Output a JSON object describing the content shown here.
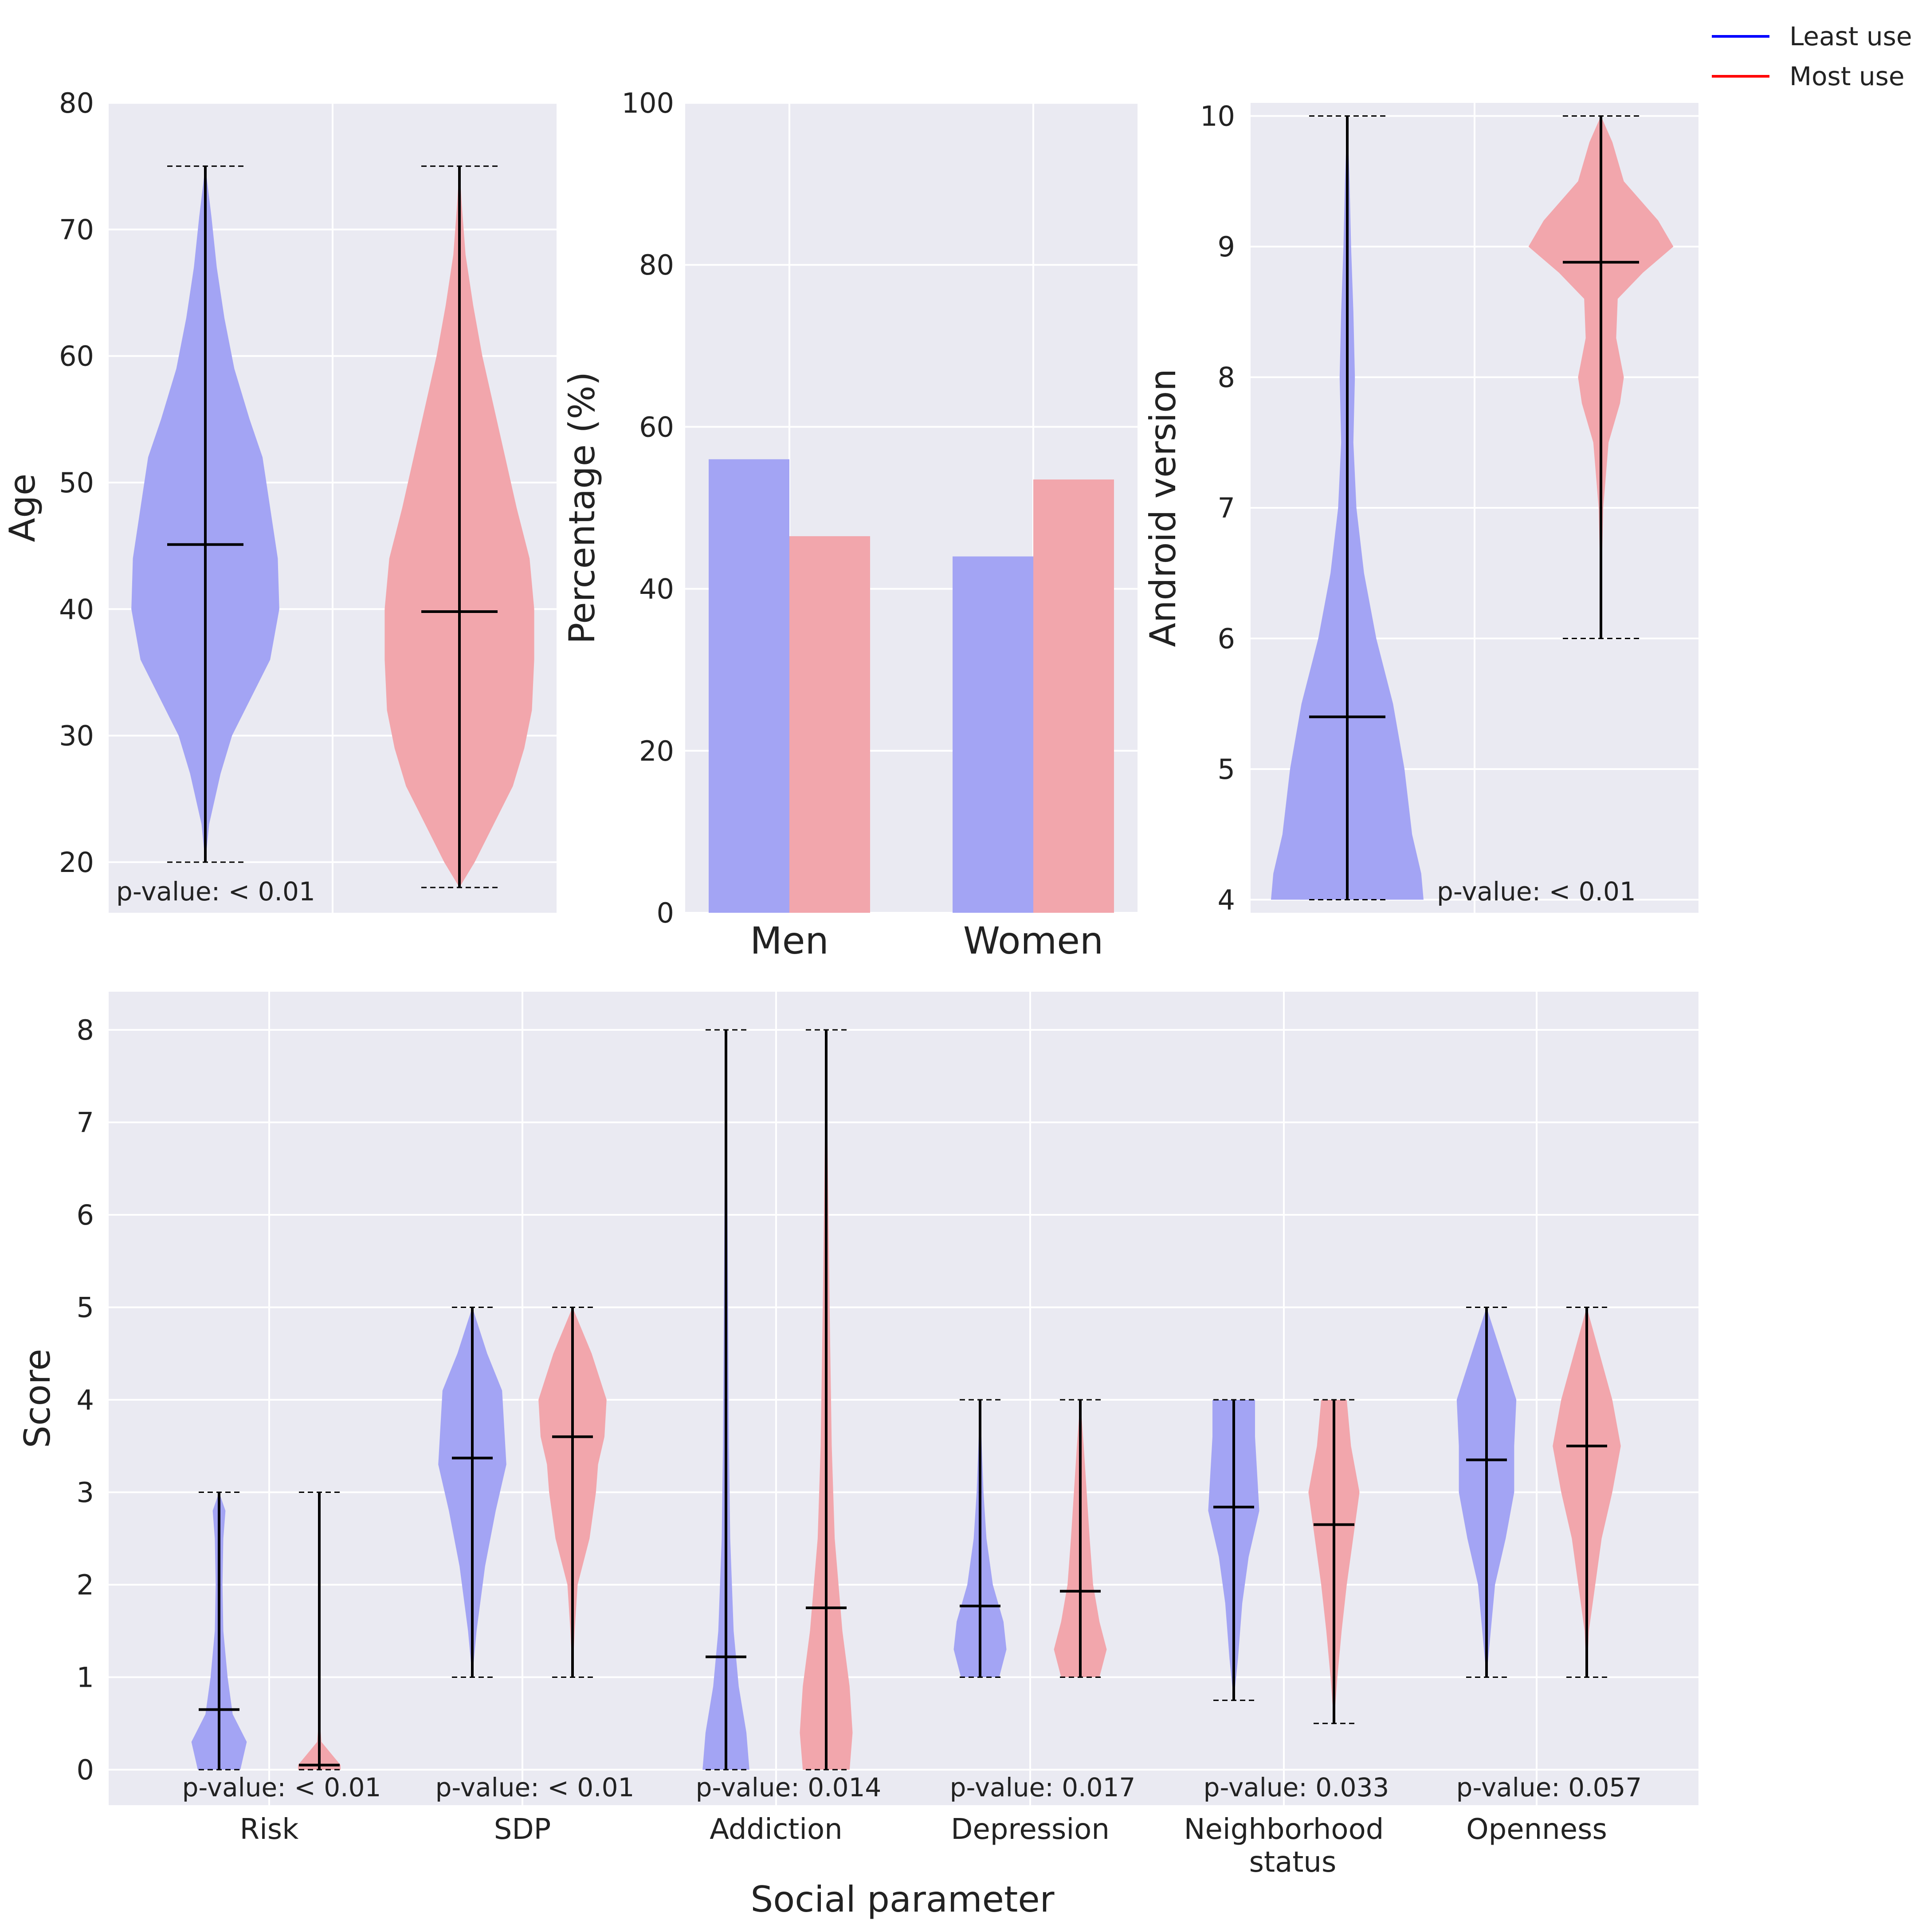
{
  "colors": {
    "least_use": "#0000ff",
    "most_use": "#ff0000",
    "least_fill": "#a3a4f4",
    "most_fill": "#f2a6ac",
    "panel_bg": "#eaeaf2",
    "grid": "#ffffff"
  },
  "legend": {
    "least_use": "Least use",
    "most_use": "Most use",
    "placement": "top-right"
  },
  "chart_data": [
    {
      "id": "age",
      "type": "violin",
      "ylabel": "Age",
      "ylim": [
        16,
        80
      ],
      "yticks": [
        "20",
        "30",
        "40",
        "50",
        "60",
        "70",
        "80"
      ],
      "series": [
        {
          "name": "Least use",
          "min": 20,
          "max": 75,
          "mean": 45.1,
          "density": [
            [
              20,
              0.0
            ],
            [
              23,
              0.05
            ],
            [
              27,
              0.2
            ],
            [
              30,
              0.35
            ],
            [
              33,
              0.6
            ],
            [
              36,
              0.85
            ],
            [
              40,
              0.97
            ],
            [
              44,
              0.95
            ],
            [
              48,
              0.85
            ],
            [
              52,
              0.75
            ],
            [
              55,
              0.58
            ],
            [
              59,
              0.38
            ],
            [
              63,
              0.25
            ],
            [
              67,
              0.15
            ],
            [
              71,
              0.08
            ],
            [
              75,
              0.0
            ]
          ]
        },
        {
          "name": "Most use",
          "min": 18,
          "max": 75,
          "mean": 39.8,
          "density": [
            [
              18,
              0.0
            ],
            [
              20,
              0.2
            ],
            [
              23,
              0.45
            ],
            [
              26,
              0.7
            ],
            [
              29,
              0.85
            ],
            [
              32,
              0.95
            ],
            [
              36,
              0.98
            ],
            [
              40,
              0.98
            ],
            [
              44,
              0.92
            ],
            [
              48,
              0.75
            ],
            [
              52,
              0.6
            ],
            [
              56,
              0.45
            ],
            [
              60,
              0.3
            ],
            [
              64,
              0.18
            ],
            [
              68,
              0.08
            ],
            [
              72,
              0.03
            ],
            [
              75,
              0.0
            ]
          ]
        }
      ],
      "annotation": "p-value: < 0.01"
    },
    {
      "id": "gender",
      "type": "bar",
      "ylabel": "Percentage (%)",
      "ylim": [
        0,
        100
      ],
      "yticks": [
        "0",
        "20",
        "40",
        "60",
        "80",
        "100"
      ],
      "categories": [
        "Men",
        "Women"
      ],
      "series": [
        {
          "name": "Least use",
          "values": [
            56,
            44
          ]
        },
        {
          "name": "Most use",
          "values": [
            46.5,
            53.5
          ]
        }
      ]
    },
    {
      "id": "android",
      "type": "violin",
      "ylabel": "Android version",
      "ylim": [
        3.9,
        10.1
      ],
      "yticks": [
        "4",
        "5",
        "6",
        "7",
        "8",
        "9",
        "10"
      ],
      "series": [
        {
          "name": "Least use",
          "min": 4,
          "max": 10,
          "mean": 5.4,
          "density": [
            [
              4,
              1.0
            ],
            [
              4.2,
              0.97
            ],
            [
              4.5,
              0.85
            ],
            [
              5,
              0.75
            ],
            [
              5.5,
              0.6
            ],
            [
              6,
              0.38
            ],
            [
              6.5,
              0.22
            ],
            [
              7,
              0.12
            ],
            [
              7.5,
              0.08
            ],
            [
              8,
              0.1
            ],
            [
              8.5,
              0.08
            ],
            [
              9,
              0.05
            ],
            [
              9.5,
              0.03
            ],
            [
              10,
              0.0
            ]
          ]
        },
        {
          "name": "Most use",
          "min": 6,
          "max": 10,
          "mean": 8.88,
          "density": [
            [
              6,
              0.0
            ],
            [
              6.5,
              0.01
            ],
            [
              7,
              0.03
            ],
            [
              7.5,
              0.1
            ],
            [
              7.8,
              0.25
            ],
            [
              8,
              0.3
            ],
            [
              8.3,
              0.2
            ],
            [
              8.6,
              0.22
            ],
            [
              8.8,
              0.55
            ],
            [
              9,
              0.95
            ],
            [
              9.2,
              0.75
            ],
            [
              9.5,
              0.3
            ],
            [
              9.8,
              0.15
            ],
            [
              10,
              0.0
            ]
          ]
        }
      ],
      "annotation": "p-value: < 0.01"
    },
    {
      "id": "social",
      "type": "violin",
      "xlabel": "Social parameter",
      "ylabel": "Score",
      "ylim": [
        -0.4,
        8.4
      ],
      "yticks": [
        "0",
        "1",
        "2",
        "3",
        "4",
        "5",
        "6",
        "7",
        "8"
      ],
      "categories": [
        "Risk",
        "SDP",
        "Addiction",
        "Depression",
        "Neighborhood\nstatus",
        "Openness"
      ],
      "pvalues": [
        "p-value: < 0.01",
        "p-value: < 0.01",
        "p-value: 0.014",
        "p-value: 0.017",
        "p-value: 0.033",
        "p-value: 0.057"
      ],
      "groups": [
        {
          "least": {
            "min": 0,
            "max": 3,
            "mean": 0.65,
            "density": [
              [
                0,
                0.5
              ],
              [
                0.3,
                0.65
              ],
              [
                0.6,
                0.32
              ],
              [
                1.0,
                0.2
              ],
              [
                1.5,
                0.1
              ],
              [
                2,
                0.08
              ],
              [
                2.5,
                0.1
              ],
              [
                2.8,
                0.15
              ],
              [
                3,
                0.0
              ]
            ]
          },
          "most": {
            "min": 0,
            "max": 3,
            "mean": 0.05,
            "density": [
              [
                0,
                0.5
              ],
              [
                0.05,
                0.5
              ],
              [
                0.15,
                0.32
              ],
              [
                0.3,
                0.05
              ],
              [
                0.6,
                0.0
              ],
              [
                3,
                0.0
              ]
            ]
          }
        },
        {
          "least": {
            "min": 1,
            "max": 5,
            "mean": 3.37,
            "density": [
              [
                1,
                0.0
              ],
              [
                1.5,
                0.1
              ],
              [
                2.2,
                0.3
              ],
              [
                2.8,
                0.55
              ],
              [
                3.3,
                0.8
              ],
              [
                3.7,
                0.75
              ],
              [
                4.1,
                0.7
              ],
              [
                4.5,
                0.35
              ],
              [
                5,
                0.0
              ]
            ]
          },
          "most": {
            "min": 1,
            "max": 5,
            "mean": 3.6,
            "density": [
              [
                1,
                0.0
              ],
              [
                1.5,
                0.05
              ],
              [
                2,
                0.12
              ],
              [
                2.5,
                0.4
              ],
              [
                3,
                0.55
              ],
              [
                3.3,
                0.6
              ],
              [
                3.6,
                0.75
              ],
              [
                4,
                0.8
              ],
              [
                4.5,
                0.45
              ],
              [
                5,
                0.0
              ]
            ]
          }
        },
        {
          "least": {
            "min": 0,
            "max": 8,
            "mean": 1.22,
            "density": [
              [
                0,
                0.55
              ],
              [
                0.4,
                0.48
              ],
              [
                0.9,
                0.3
              ],
              [
                1.5,
                0.18
              ],
              [
                2.5,
                0.1
              ],
              [
                3.5,
                0.07
              ],
              [
                5,
                0.05
              ],
              [
                6.5,
                0.03
              ],
              [
                8,
                0.0
              ]
            ]
          },
          "most": {
            "min": 0,
            "max": 8,
            "mean": 1.75,
            "density": [
              [
                0,
                0.55
              ],
              [
                0.4,
                0.62
              ],
              [
                0.9,
                0.55
              ],
              [
                1.5,
                0.38
              ],
              [
                2.5,
                0.2
              ],
              [
                3.5,
                0.13
              ],
              [
                5,
                0.08
              ],
              [
                6.5,
                0.04
              ],
              [
                8,
                0.0
              ]
            ]
          }
        },
        {
          "least": {
            "min": 1,
            "max": 4,
            "mean": 1.77,
            "density": [
              [
                1,
                0.45
              ],
              [
                1.3,
                0.62
              ],
              [
                1.6,
                0.55
              ],
              [
                2,
                0.3
              ],
              [
                2.5,
                0.15
              ],
              [
                3,
                0.08
              ],
              [
                3.5,
                0.04
              ],
              [
                4,
                0.0
              ]
            ]
          },
          "most": {
            "min": 1,
            "max": 4,
            "mean": 1.93,
            "density": [
              [
                1,
                0.45
              ],
              [
                1.3,
                0.62
              ],
              [
                1.6,
                0.45
              ],
              [
                2,
                0.3
              ],
              [
                2.5,
                0.22
              ],
              [
                3,
                0.15
              ],
              [
                3.5,
                0.08
              ],
              [
                4,
                0.0
              ]
            ]
          }
        },
        {
          "least": {
            "min": 0.75,
            "max": 4,
            "mean": 2.84,
            "density": [
              [
                0.75,
                0.0
              ],
              [
                1.2,
                0.1
              ],
              [
                1.8,
                0.2
              ],
              [
                2.3,
                0.35
              ],
              [
                2.8,
                0.6
              ],
              [
                3.2,
                0.55
              ],
              [
                3.6,
                0.5
              ],
              [
                4,
                0.5
              ]
            ]
          },
          "most": {
            "min": 0.5,
            "max": 4,
            "mean": 2.65,
            "density": [
              [
                0.5,
                0.0
              ],
              [
                1,
                0.08
              ],
              [
                1.5,
                0.18
              ],
              [
                2,
                0.3
              ],
              [
                2.5,
                0.45
              ],
              [
                3,
                0.6
              ],
              [
                3.5,
                0.4
              ],
              [
                4,
                0.3
              ]
            ]
          }
        },
        {
          "least": {
            "min": 1,
            "max": 5,
            "mean": 3.35,
            "density": [
              [
                1,
                0.0
              ],
              [
                1.5,
                0.1
              ],
              [
                2,
                0.2
              ],
              [
                2.5,
                0.45
              ],
              [
                3,
                0.65
              ],
              [
                3.5,
                0.65
              ],
              [
                4,
                0.7
              ],
              [
                4.5,
                0.35
              ],
              [
                5,
                0.0
              ]
            ]
          },
          "most": {
            "min": 1,
            "max": 5,
            "mean": 3.5,
            "density": [
              [
                1,
                0.0
              ],
              [
                1.5,
                0.05
              ],
              [
                2,
                0.2
              ],
              [
                2.5,
                0.35
              ],
              [
                3,
                0.6
              ],
              [
                3.5,
                0.8
              ],
              [
                4,
                0.6
              ],
              [
                4.5,
                0.3
              ],
              [
                5,
                0.0
              ]
            ]
          }
        }
      ]
    }
  ]
}
